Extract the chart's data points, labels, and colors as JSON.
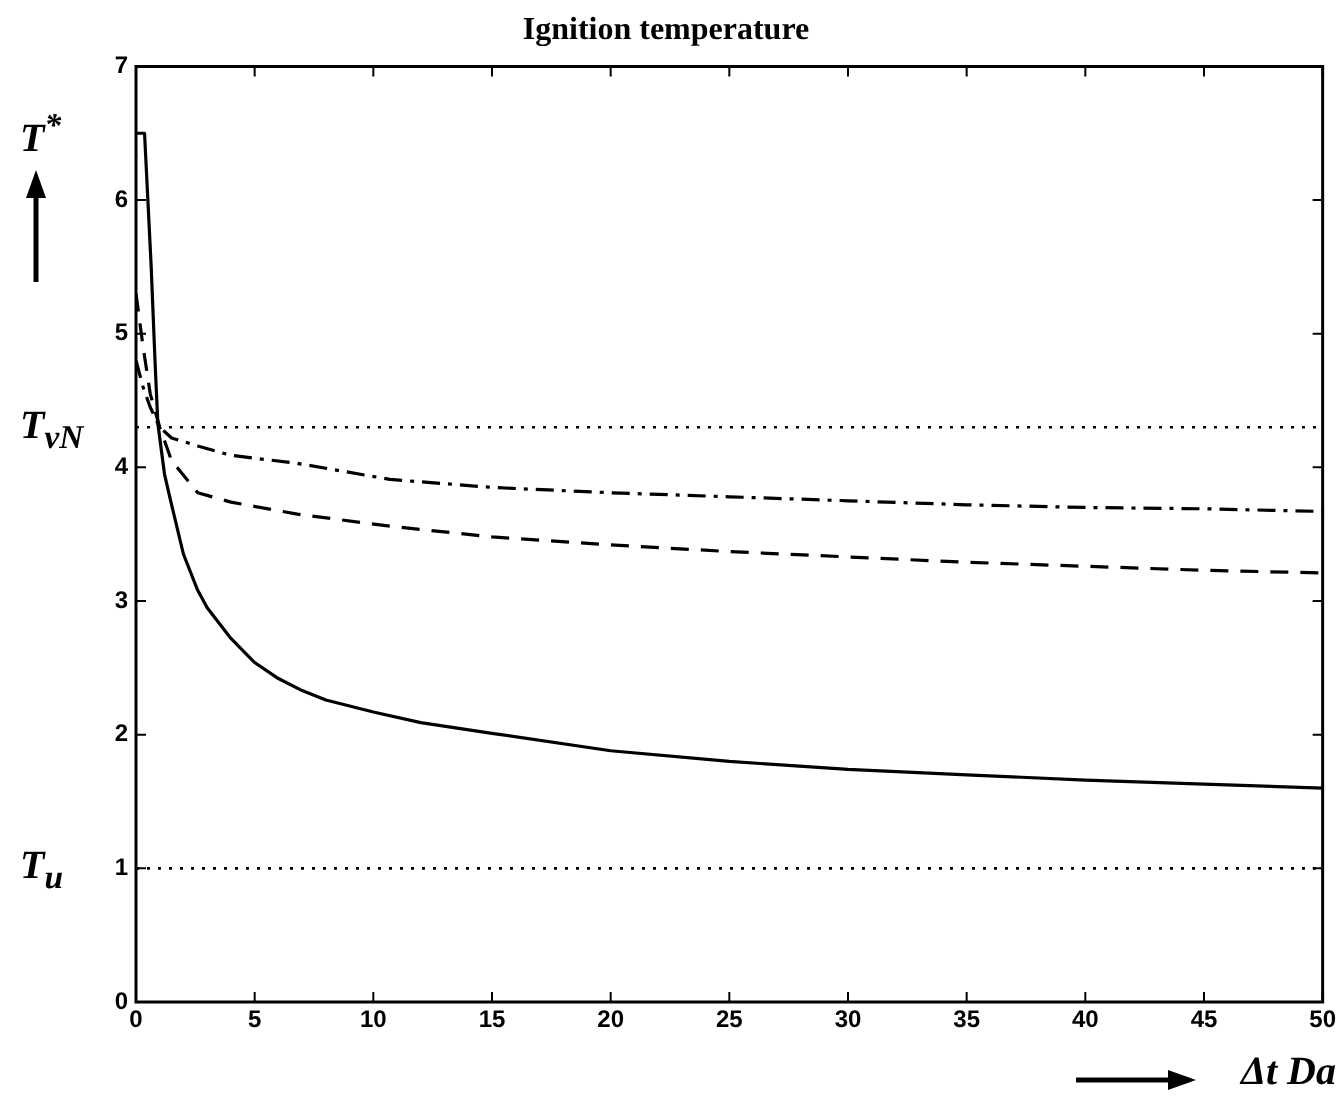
{
  "chart_data": {
    "type": "line",
    "title": "Ignition temperature",
    "xlabel": "Δt Da",
    "ylabel": "T$^{*}$",
    "xlim": [
      0,
      50
    ],
    "xticks": [
      0,
      5,
      10,
      15,
      20,
      25,
      30,
      35,
      40,
      45,
      50
    ],
    "ylim": [
      0,
      7
    ],
    "yticks": [
      0,
      1,
      2,
      3,
      4,
      5,
      6,
      7
    ],
    "series": [
      {
        "color": "#000000",
        "line_style": "solid",
        "x": [
          0,
          0.36,
          0.5,
          0.64,
          0.8,
          0.92,
          1.2,
          1.5,
          2,
          2.6,
          3,
          4,
          5,
          6,
          7,
          8,
          10,
          12,
          15,
          20,
          25,
          30,
          35,
          40,
          45,
          50
        ],
        "values": [
          6.5,
          6.5,
          6.0,
          5.5,
          4.8,
          4.33,
          3.95,
          3.72,
          3.35,
          3.08,
          2.95,
          2.72,
          2.54,
          2.42,
          2.33,
          2.26,
          2.17,
          2.09,
          2.01,
          1.88,
          1.8,
          1.74,
          1.7,
          1.66,
          1.63,
          1.6
        ]
      },
      {
        "color": "#000000",
        "line_style": "dashed",
        "x": [
          0,
          0.3,
          0.6,
          1,
          1.5,
          2.6,
          4,
          6.8,
          10.7,
          15,
          20,
          25,
          30,
          35,
          40,
          45,
          50
        ],
        "values": [
          5.3,
          4.9,
          4.55,
          4.3,
          4.05,
          3.81,
          3.74,
          3.65,
          3.56,
          3.48,
          3.42,
          3.37,
          3.33,
          3.29,
          3.26,
          3.23,
          3.21
        ]
      },
      {
        "color": "#000000",
        "line_style": "dashdot",
        "x": [
          0,
          0.3,
          0.6,
          1,
          1.5,
          2.6,
          4,
          6.8,
          10.7,
          15,
          20,
          25,
          30,
          35,
          40,
          45,
          50
        ],
        "values": [
          4.8,
          4.6,
          4.45,
          4.3,
          4.22,
          4.16,
          4.09,
          4.03,
          3.91,
          3.85,
          3.81,
          3.78,
          3.75,
          3.72,
          3.7,
          3.69,
          3.67
        ]
      }
    ],
    "ref_lines": [
      {
        "axis": "y",
        "value": 4.3,
        "label": "T$_{vN}$",
        "line_style": "dotted",
        "color": "#000000"
      },
      {
        "axis": "y",
        "value": 1,
        "label": "T$_{u}$",
        "line_style": "dotted",
        "color": "#000000"
      }
    ]
  }
}
